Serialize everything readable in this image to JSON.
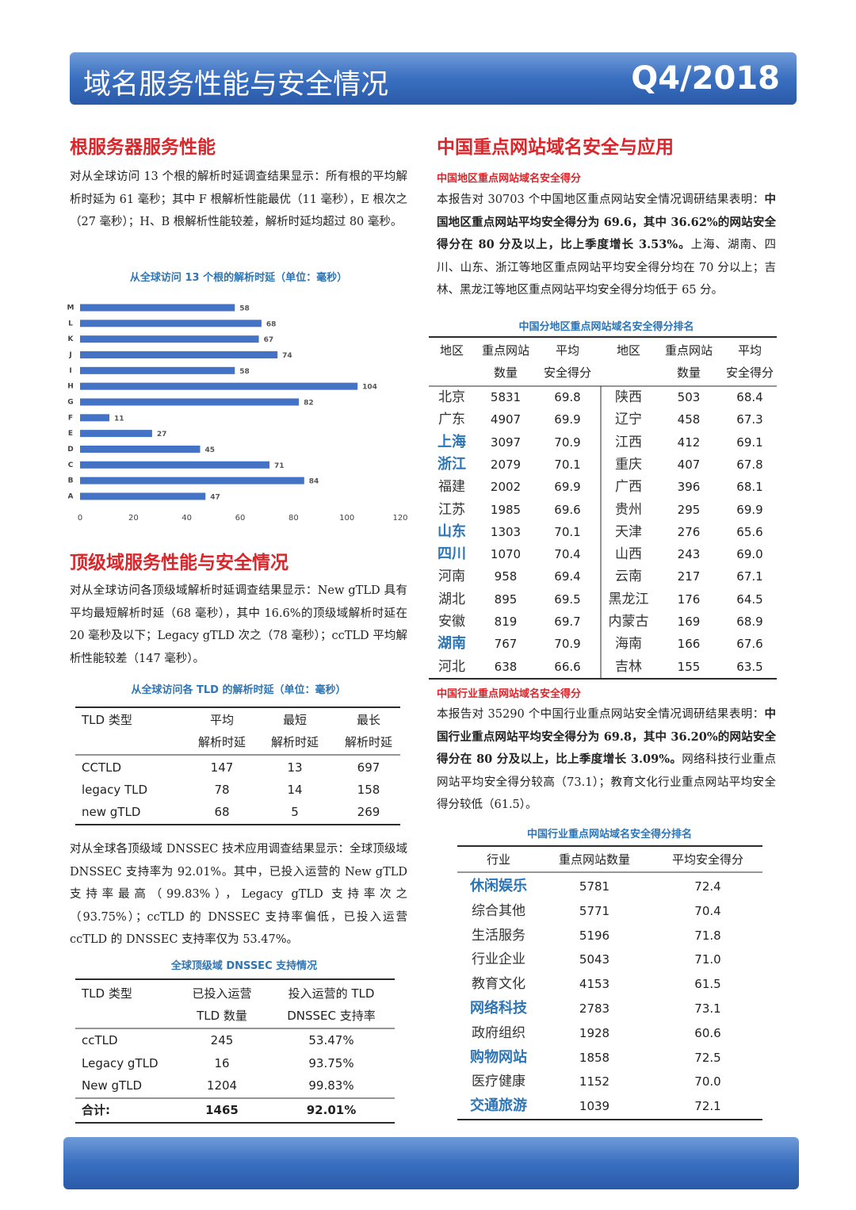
{
  "header": {
    "title": "域名服务性能与安全情况",
    "quarter": "Q4/2018"
  },
  "root_section": {
    "heading": "根服务器服务性能",
    "paragraph": "对从全球访问 13 个根的解析时延调查结果显示：所有根的平均解析时延为 61 毫秒；其中 F 根解析性能最优（11 毫秒），E 根次之（27 毫秒）；H、B 根解析性能较差，解析时延均超过 80 毫秒。"
  },
  "chart_data": {
    "type": "hbar",
    "title": "从全球访问 13 个根的解析时延（单位：毫秒）",
    "categories": [
      "M",
      "L",
      "K",
      "J",
      "I",
      "H",
      "G",
      "F",
      "E",
      "D",
      "C",
      "B",
      "A"
    ],
    "values": [
      58,
      68,
      67,
      74,
      58,
      104,
      82,
      11,
      27,
      45,
      71,
      84,
      47
    ],
    "color": "#4472c4",
    "xlim": [
      0,
      120
    ],
    "xticks": [
      0,
      20,
      40,
      60,
      80,
      100,
      120
    ],
    "grid": false
  },
  "tld_section": {
    "heading": "顶级域服务性能与安全情况",
    "paragraph": "对从全球访问各顶级域解析时延调查结果显示：New gTLD 具有平均最短解析时延（68 毫秒），其中 16.6%的顶级域解析时延在 20 毫秒及以下；Legacy gTLD 次之（78 毫秒）；ccTLD 平均解析性能较差（147 毫秒）。",
    "dnssec_paragraph": "对从全球各顶级域 DNSSEC 技术应用调查结果显示：全球顶级域 DNSSEC 支持率为 92.01%。其中，已投入运营的 New gTLD 支持率最高（99.83%），Legacy gTLD 支持率次之（93.75%）；ccTLD 的 DNSSEC 支持率偏低，已投入运营 ccTLD 的 DNSSEC 支持率仅为 53.47%。"
  },
  "latency_table": {
    "title": "从全球访问各 TLD 的解析时延（单位：毫秒）",
    "header": [
      [
        "TLD 类型"
      ],
      [
        "平均",
        "解析时延"
      ],
      [
        "最短",
        "解析时延"
      ],
      [
        "最长",
        "解析时延"
      ]
    ],
    "rows": [
      [
        "CCTLD",
        "147",
        "13",
        "697"
      ],
      [
        "legacy TLD",
        "78",
        "14",
        "158"
      ],
      [
        "new gTLD",
        "68",
        "5",
        "269"
      ]
    ]
  },
  "dnssec_table": {
    "title": "全球顶级域 DNSSEC 支持情况",
    "header": [
      [
        "TLD 类型"
      ],
      [
        "已投入运营",
        "TLD 数量"
      ],
      [
        "投入运营的 TLD",
        "DNSSEC 支持率"
      ]
    ],
    "rows": [
      [
        "ccTLD",
        "245",
        "53.47%"
      ],
      [
        "Legacy gTLD",
        "16",
        "93.75%"
      ],
      [
        "New gTLD",
        "1204",
        "99.83%"
      ]
    ],
    "total": [
      "合计:",
      "1465",
      "92.01%"
    ]
  },
  "site_section": {
    "heading": "中国重点网站域名安全与应用",
    "region_heading": "中国地区重点网站域名安全得分",
    "region_paragraph": [
      "本报告对 30703 个中国地区重点网站安全情况调研结果表明：",
      "中国地区重点网站平均安全得分为 69.6，其中 36.62%的网站安全得分在 80 分及以上，比上季度增长 3.53%。",
      "上海、湖南、四川、山东、浙江等地区重点网站平均安全得分均在 70 分以上；吉林、黑龙江等地区重点网站平均安全得分均低于 65 分。"
    ],
    "industry_heading": "中国行业重点网站域名安全得分",
    "industry_paragraph": [
      "本报告对 35290 个中国行业重点网站安全情况调研结果表明：",
      "中国行业重点网站平均安全得分为 69.8，其中 36.20%的网站安全得分在 80 分及以上，比上季度增长 3.09%。",
      "网络科技行业重点网站平均安全得分较高（73.1）；教育文化行业重点网站平均安全得分较低（61.5）。"
    ]
  },
  "region_table": {
    "title": "中国分地区重点网站域名安全得分排名",
    "highlight_color": "#2e75b6",
    "header": [
      [
        "地区"
      ],
      [
        "重点网站",
        "数量"
      ],
      [
        "平均",
        "安全得分"
      ]
    ],
    "rows": [
      {
        "cells": [
          "北京",
          "5831",
          "69.8"
        ]
      },
      {
        "cells": [
          "广东",
          "4907",
          "69.9"
        ]
      },
      {
        "cells": [
          "上海",
          "3097",
          "70.9"
        ],
        "highlight": true
      },
      {
        "cells": [
          "浙江",
          "2079",
          "70.1"
        ],
        "highlight": true
      },
      {
        "cells": [
          "福建",
          "2002",
          "69.9"
        ]
      },
      {
        "cells": [
          "江苏",
          "1985",
          "69.6"
        ]
      },
      {
        "cells": [
          "山东",
          "1303",
          "70.1"
        ],
        "highlight": true
      },
      {
        "cells": [
          "四川",
          "1070",
          "70.4"
        ],
        "highlight": true
      },
      {
        "cells": [
          "河南",
          "958",
          "69.4"
        ]
      },
      {
        "cells": [
          "湖北",
          "895",
          "69.5"
        ]
      },
      {
        "cells": [
          "安徽",
          "819",
          "69.7"
        ]
      },
      {
        "cells": [
          "湖南",
          "767",
          "70.9"
        ],
        "highlight": true
      },
      {
        "cells": [
          "河北",
          "638",
          "66.6"
        ]
      },
      {
        "cells": [
          "陕西",
          "503",
          "68.4"
        ]
      },
      {
        "cells": [
          "辽宁",
          "458",
          "67.3"
        ]
      },
      {
        "cells": [
          "江西",
          "412",
          "69.1"
        ]
      },
      {
        "cells": [
          "重庆",
          "407",
          "67.8"
        ]
      },
      {
        "cells": [
          "广西",
          "396",
          "68.1"
        ]
      },
      {
        "cells": [
          "贵州",
          "295",
          "69.9"
        ]
      },
      {
        "cells": [
          "天津",
          "276",
          "65.6"
        ]
      },
      {
        "cells": [
          "山西",
          "243",
          "69.0"
        ]
      },
      {
        "cells": [
          "云南",
          "217",
          "67.1"
        ]
      },
      {
        "cells": [
          "黑龙江",
          "176",
          "64.5"
        ]
      },
      {
        "cells": [
          "内蒙古",
          "169",
          "68.9"
        ]
      },
      {
        "cells": [
          "海南",
          "166",
          "67.6"
        ]
      },
      {
        "cells": [
          "吉林",
          "155",
          "63.5"
        ]
      }
    ]
  },
  "industry_table": {
    "title": "中国行业重点网站域名安全得分排名",
    "highlight_color": "#2e75b6",
    "header": [
      "行业",
      "重点网站数量",
      "平均安全得分"
    ],
    "rows": [
      {
        "cells": [
          "休闲娱乐",
          "5781",
          "72.4"
        ],
        "highlight": true
      },
      {
        "cells": [
          "综合其他",
          "5771",
          "70.4"
        ]
      },
      {
        "cells": [
          "生活服务",
          "5196",
          "71.8"
        ]
      },
      {
        "cells": [
          "行业企业",
          "5043",
          "71.0"
        ]
      },
      {
        "cells": [
          "教育文化",
          "4153",
          "61.5"
        ]
      },
      {
        "cells": [
          "网络科技",
          "2783",
          "73.1"
        ],
        "highlight": true
      },
      {
        "cells": [
          "政府组织",
          "1928",
          "60.6"
        ]
      },
      {
        "cells": [
          "购物网站",
          "1858",
          "72.5"
        ],
        "highlight": true
      },
      {
        "cells": [
          "医疗健康",
          "1152",
          "70.0"
        ]
      },
      {
        "cells": [
          "交通旅游",
          "1039",
          "72.1"
        ],
        "highlight": true
      }
    ]
  }
}
